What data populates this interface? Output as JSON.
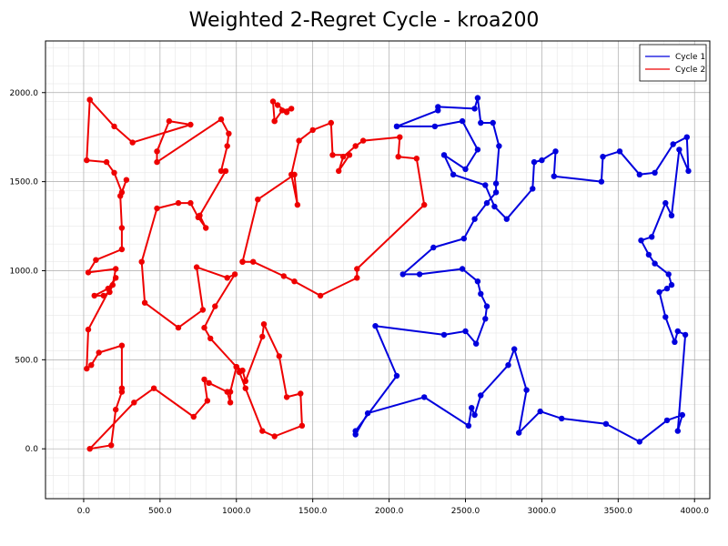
{
  "chart_data": {
    "type": "line",
    "title": "Weighted 2-Regret Cycle - kroa200",
    "xlabel": "",
    "ylabel": "",
    "xlim": [
      -250,
      4100
    ],
    "ylim": [
      -280,
      2290
    ],
    "x_ticks": [
      0,
      500,
      1000,
      1500,
      2000,
      2500,
      3000,
      3500,
      4000
    ],
    "y_ticks": [
      0,
      500,
      1000,
      1500,
      2000
    ],
    "x_tick_labels": [
      "0.0",
      "500.0",
      "1000.0",
      "1500.0",
      "2000.0",
      "2500.0",
      "3000.0",
      "3500.0",
      "4000.0"
    ],
    "y_tick_labels": [
      "0.0",
      "500.0",
      "1000.0",
      "1500.0",
      "2000.0"
    ],
    "grid": true,
    "legend_position": "top-right",
    "series": [
      {
        "name": "Cycle 1",
        "color": "#0000dd",
        "closed": true,
        "points": [
          [
            2050,
            1810
          ],
          [
            2300,
            1810
          ],
          [
            2480,
            1840
          ],
          [
            2580,
            1680
          ],
          [
            2500,
            1570
          ],
          [
            2360,
            1650
          ],
          [
            2420,
            1540
          ],
          [
            2630,
            1480
          ],
          [
            2690,
            1360
          ],
          [
            2770,
            1290
          ],
          [
            2940,
            1460
          ],
          [
            2950,
            1610
          ],
          [
            3000,
            1620
          ],
          [
            3090,
            1670
          ],
          [
            3080,
            1530
          ],
          [
            3390,
            1500
          ],
          [
            3400,
            1640
          ],
          [
            3510,
            1670
          ],
          [
            3640,
            1540
          ],
          [
            3740,
            1550
          ],
          [
            3860,
            1710
          ],
          [
            3950,
            1750
          ],
          [
            3960,
            1560
          ],
          [
            3900,
            1680
          ],
          [
            3850,
            1310
          ],
          [
            3810,
            1380
          ],
          [
            3720,
            1190
          ],
          [
            3650,
            1170
          ],
          [
            3700,
            1090
          ],
          [
            3740,
            1040
          ],
          [
            3830,
            980
          ],
          [
            3850,
            920
          ],
          [
            3820,
            900
          ],
          [
            3770,
            880
          ],
          [
            3810,
            740
          ],
          [
            3870,
            600
          ],
          [
            3890,
            660
          ],
          [
            3940,
            640
          ],
          [
            3890,
            100
          ],
          [
            3920,
            190
          ],
          [
            3820,
            160
          ],
          [
            3640,
            40
          ],
          [
            3420,
            140
          ],
          [
            3130,
            170
          ],
          [
            2990,
            210
          ],
          [
            2850,
            90
          ],
          [
            2900,
            330
          ],
          [
            2820,
            560
          ],
          [
            2780,
            470
          ],
          [
            2600,
            300
          ],
          [
            2560,
            190
          ],
          [
            2540,
            230
          ],
          [
            2520,
            130
          ],
          [
            2230,
            290
          ],
          [
            1860,
            200
          ],
          [
            1780,
            80
          ],
          [
            1780,
            100
          ],
          [
            2050,
            410
          ],
          [
            1910,
            690
          ],
          [
            2360,
            640
          ],
          [
            2500,
            660
          ],
          [
            2570,
            590
          ],
          [
            2630,
            730
          ],
          [
            2640,
            800
          ],
          [
            2600,
            870
          ],
          [
            2580,
            940
          ],
          [
            2480,
            1010
          ],
          [
            2200,
            980
          ],
          [
            2090,
            980
          ],
          [
            2290,
            1130
          ],
          [
            2490,
            1180
          ],
          [
            2560,
            1290
          ],
          [
            2640,
            1380
          ],
          [
            2700,
            1440
          ],
          [
            2700,
            1490
          ],
          [
            2720,
            1700
          ],
          [
            2680,
            1830
          ],
          [
            2600,
            1830
          ],
          [
            2580,
            1970
          ],
          [
            2560,
            1910
          ],
          [
            2320,
            1920
          ],
          [
            2320,
            1900
          ],
          [
            2050,
            1810
          ]
        ]
      },
      {
        "name": "Cycle 2",
        "color": "#ee0000",
        "closed": true,
        "points": [
          [
            40,
            1960
          ],
          [
            20,
            1620
          ],
          [
            150,
            1610
          ],
          [
            200,
            1550
          ],
          [
            250,
            1440
          ],
          [
            280,
            1510
          ],
          [
            240,
            1420
          ],
          [
            250,
            1240
          ],
          [
            250,
            1120
          ],
          [
            80,
            1060
          ],
          [
            30,
            990
          ],
          [
            210,
            1010
          ],
          [
            190,
            920
          ],
          [
            170,
            880
          ],
          [
            130,
            860
          ],
          [
            70,
            860
          ],
          [
            160,
            900
          ],
          [
            210,
            960
          ],
          [
            30,
            670
          ],
          [
            20,
            450
          ],
          [
            50,
            470
          ],
          [
            100,
            540
          ],
          [
            250,
            580
          ],
          [
            250,
            340
          ],
          [
            250,
            320
          ],
          [
            210,
            220
          ],
          [
            180,
            20
          ],
          [
            40,
            0
          ],
          [
            330,
            260
          ],
          [
            460,
            340
          ],
          [
            720,
            180
          ],
          [
            810,
            270
          ],
          [
            790,
            390
          ],
          [
            820,
            370
          ],
          [
            940,
            320
          ],
          [
            960,
            260
          ],
          [
            960,
            320
          ],
          [
            1000,
            460
          ],
          [
            1040,
            440
          ],
          [
            1060,
            380
          ],
          [
            1170,
            630
          ],
          [
            1180,
            700
          ],
          [
            1280,
            520
          ],
          [
            1330,
            290
          ],
          [
            1420,
            310
          ],
          [
            1430,
            130
          ],
          [
            1250,
            70
          ],
          [
            1170,
            100
          ],
          [
            1060,
            340
          ],
          [
            1020,
            430
          ],
          [
            1000,
            460
          ],
          [
            830,
            620
          ],
          [
            790,
            680
          ],
          [
            860,
            800
          ],
          [
            990,
            980
          ],
          [
            940,
            960
          ],
          [
            740,
            1020
          ],
          [
            780,
            780
          ],
          [
            620,
            680
          ],
          [
            400,
            820
          ],
          [
            380,
            1050
          ],
          [
            480,
            1350
          ],
          [
            620,
            1380
          ],
          [
            700,
            1380
          ],
          [
            750,
            1300
          ],
          [
            800,
            1240
          ],
          [
            760,
            1310
          ],
          [
            930,
            1560
          ],
          [
            900,
            1560
          ],
          [
            940,
            1700
          ],
          [
            950,
            1770
          ],
          [
            900,
            1850
          ],
          [
            480,
            1610
          ],
          [
            480,
            1670
          ],
          [
            560,
            1840
          ],
          [
            700,
            1820
          ],
          [
            320,
            1720
          ],
          [
            200,
            1810
          ],
          [
            40,
            1960
          ]
        ],
        "extra_segments": [
          [
            [
              1000,
              460
            ],
            [
              1020,
              430
            ]
          ],
          [
            [
              1040,
              1050
            ],
            [
              1110,
              1050
            ],
            [
              1310,
              970
            ],
            [
              1380,
              940
            ],
            [
              1550,
              860
            ],
            [
              1790,
              960
            ],
            [
              1790,
              1010
            ],
            [
              2230,
              1370
            ],
            [
              2180,
              1630
            ],
            [
              2060,
              1640
            ],
            [
              2070,
              1750
            ],
            [
              1830,
              1730
            ],
            [
              1780,
              1700
            ],
            [
              1700,
              1640
            ],
            [
              1670,
              1560
            ],
            [
              1740,
              1650
            ],
            [
              1630,
              1650
            ],
            [
              1620,
              1830
            ],
            [
              1500,
              1790
            ],
            [
              1410,
              1730
            ],
            [
              1360,
              1540
            ],
            [
              1400,
              1370
            ],
            [
              1380,
              1540
            ],
            [
              1140,
              1400
            ],
            [
              1040,
              1050
            ]
          ],
          [
            [
              1250,
              1840
            ],
            [
              1240,
              1950
            ],
            [
              1270,
              1930
            ],
            [
              1330,
              1890
            ],
            [
              1360,
              1910
            ],
            [
              1300,
              1900
            ],
            [
              1250,
              1840
            ]
          ]
        ]
      }
    ]
  }
}
